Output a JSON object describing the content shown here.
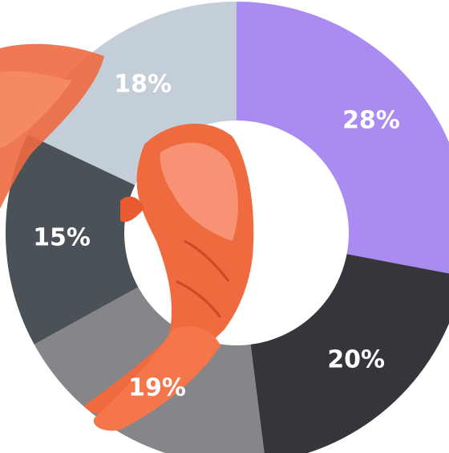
{
  "chart_data": {
    "type": "donut",
    "values": [
      28,
      20,
      19,
      15,
      18
    ],
    "value_labels": [
      "28%",
      "20%",
      "19%",
      "15%",
      "18%"
    ],
    "colors": [
      "#a98bf1",
      "#37353c",
      "#86858a",
      "#4a5157",
      "#c4ced9"
    ]
  }
}
